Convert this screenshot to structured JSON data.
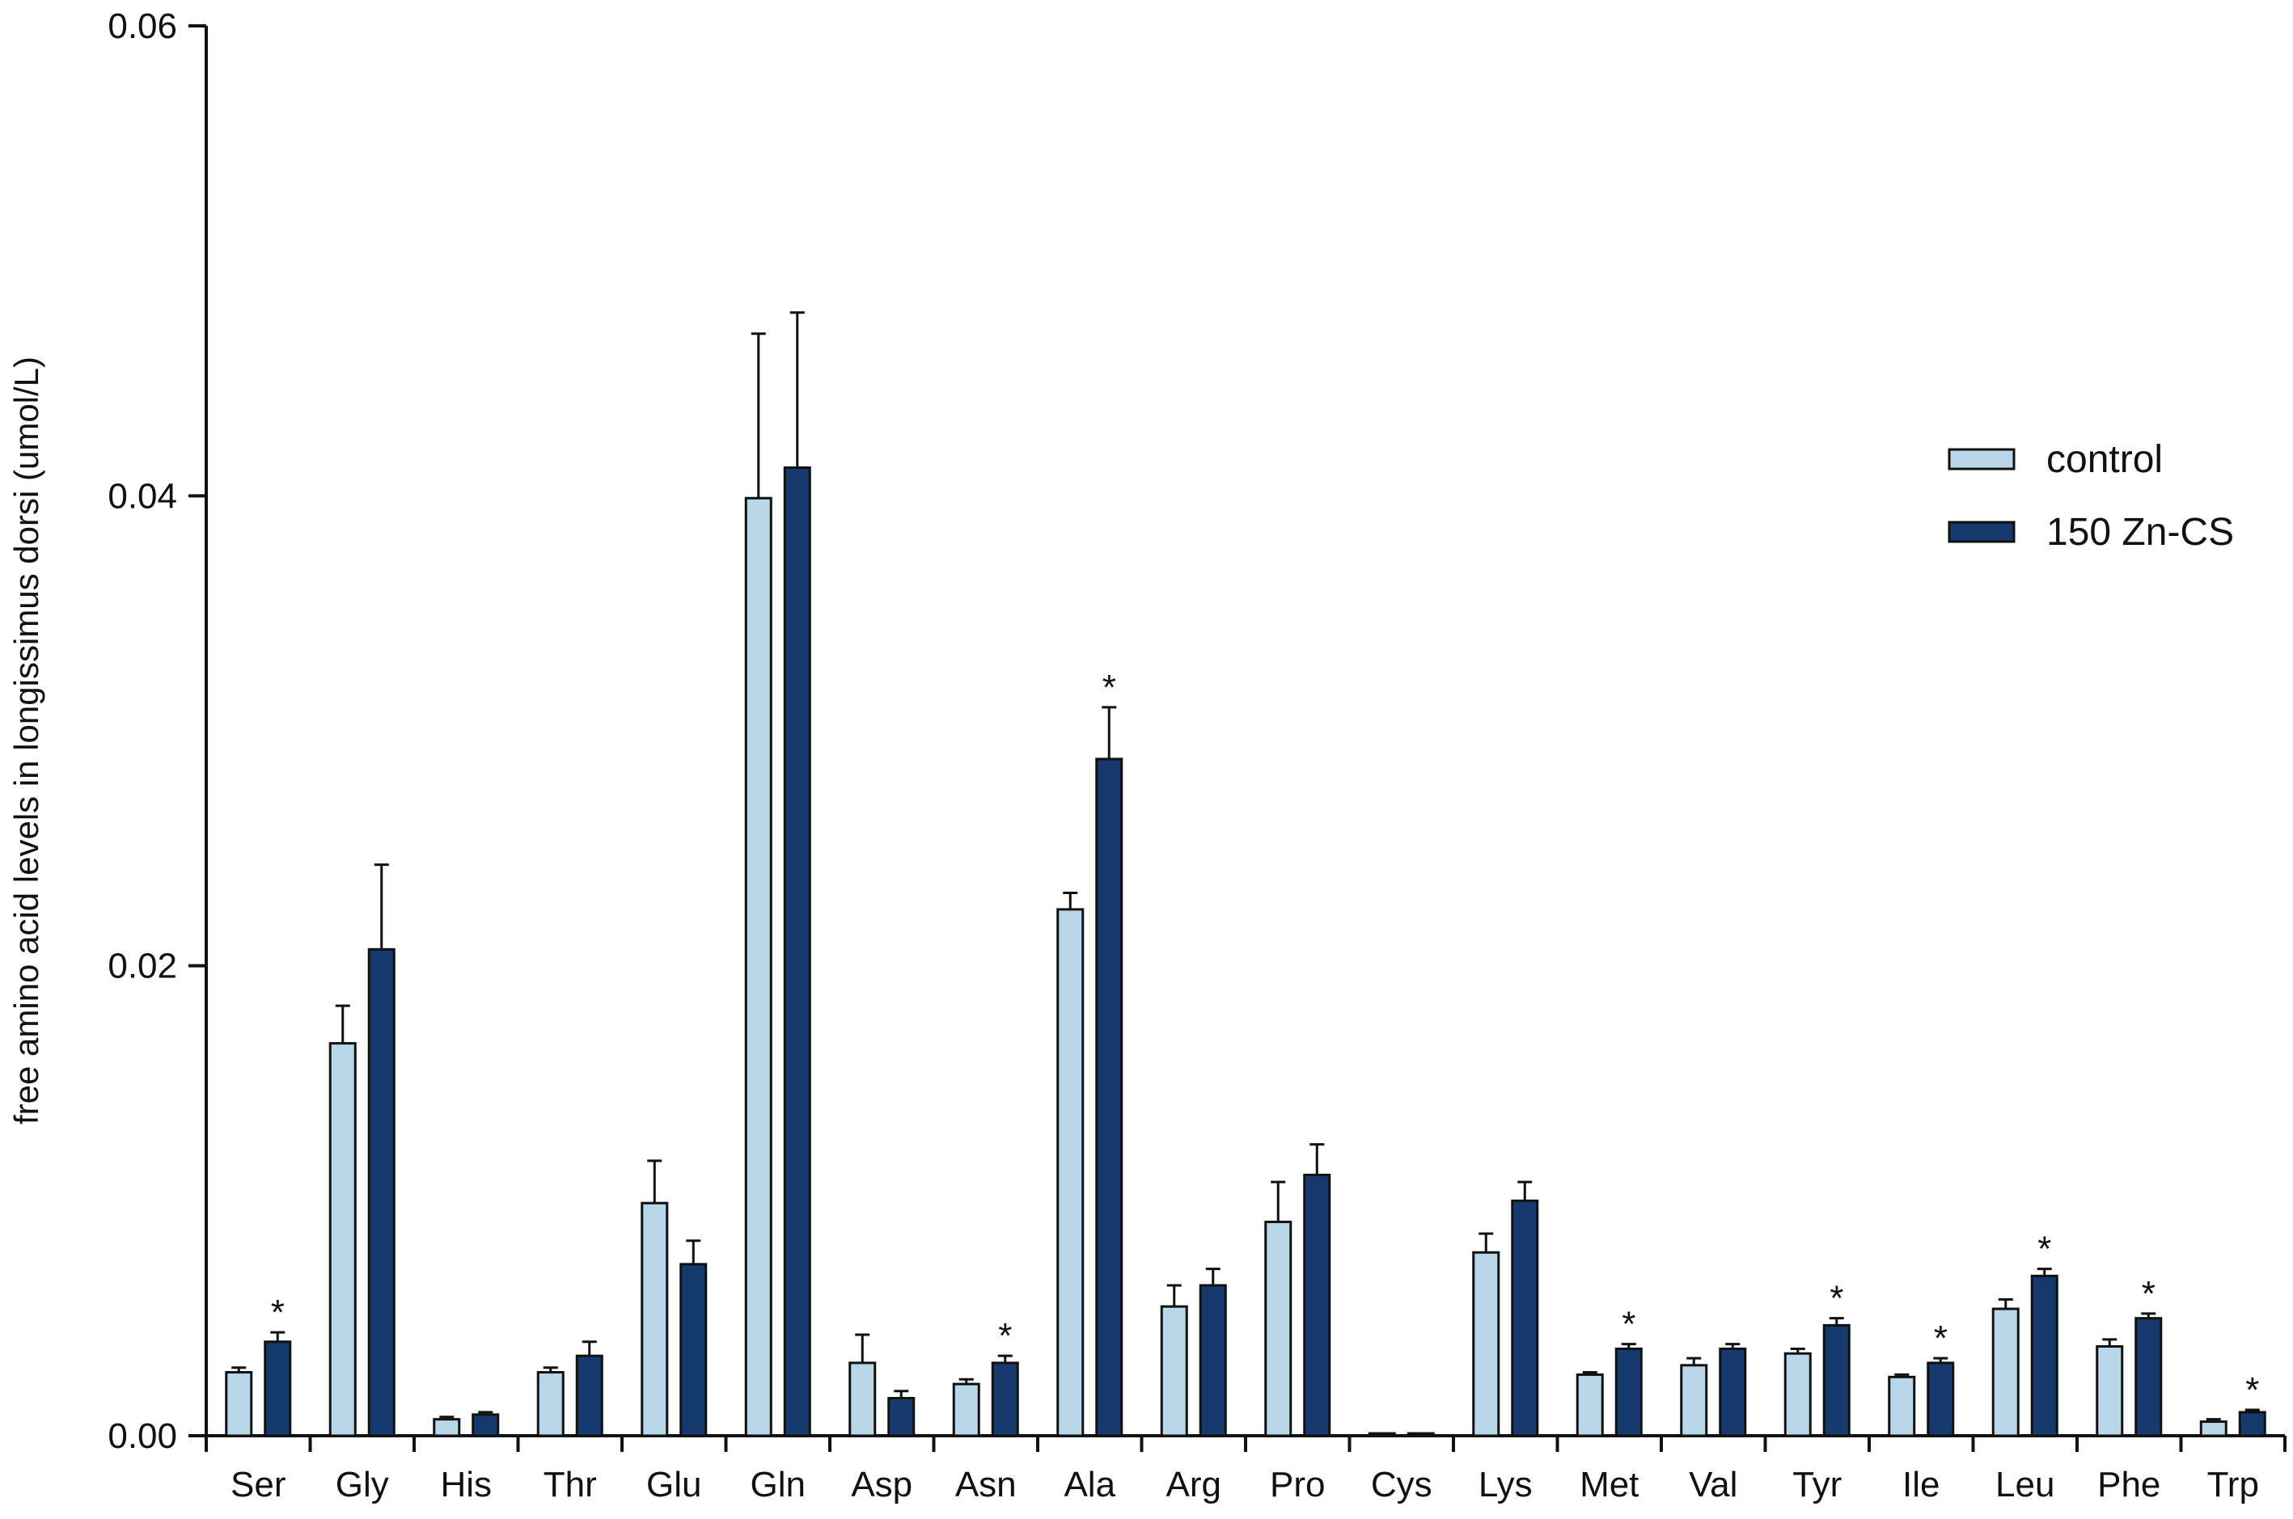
{
  "chart_data": {
    "type": "bar",
    "title": "",
    "xlabel": "",
    "ylabel": "free amino acid levels in longissimus dorsi (umol/L)",
    "ylim": [
      0,
      0.06
    ],
    "yticks": [
      "0.00",
      "0.02",
      "0.04",
      "0.06"
    ],
    "ytick_values": [
      0,
      0.02,
      0.04,
      0.06
    ],
    "grid": false,
    "legend_position": "right",
    "categories": [
      "Ser",
      "Gly",
      "His",
      "Thr",
      "Glu",
      "Gln",
      "Asp",
      "Asn",
      "Ala",
      "Arg",
      "Pro",
      "Cys",
      "Lys",
      "Met",
      "Val",
      "Tyr",
      "Ile",
      "Leu",
      "Phe",
      "Trp"
    ],
    "series": [
      {
        "name": "control",
        "color": "#b8d8ea",
        "values": [
          0.0027,
          0.0167,
          0.0007,
          0.0027,
          0.0099,
          0.0399,
          0.0031,
          0.0022,
          0.0224,
          0.0055,
          0.0091,
          0.0001,
          0.0078,
          0.0026,
          0.003,
          0.0035,
          0.0025,
          0.0054,
          0.0038,
          0.0006
        ],
        "errors": [
          0.0002,
          0.0016,
          0.0001,
          0.0002,
          0.0018,
          0.007,
          0.0012,
          0.0002,
          0.0007,
          0.0009,
          0.0017,
          0.0,
          0.0008,
          0.0001,
          0.0003,
          0.0002,
          0.0001,
          0.0004,
          0.0003,
          0.0001
        ]
      },
      {
        "name": "150 Zn-CS",
        "color": "#143a6e",
        "values": [
          0.004,
          0.0207,
          0.0009,
          0.0034,
          0.0073,
          0.0412,
          0.0016,
          0.0031,
          0.0288,
          0.0064,
          0.0111,
          0.0001,
          0.01,
          0.0037,
          0.0037,
          0.0047,
          0.0031,
          0.0068,
          0.005,
          0.001
        ],
        "errors": [
          0.0004,
          0.0036,
          0.0001,
          0.0006,
          0.001,
          0.0066,
          0.0003,
          0.0003,
          0.0022,
          0.0007,
          0.0013,
          0.0,
          0.0008,
          0.0002,
          0.0002,
          0.0003,
          0.0002,
          0.0003,
          0.0002,
          0.0001
        ]
      }
    ],
    "significance": [
      {
        "category": "Ser",
        "series": "150 Zn-CS",
        "mark": "*"
      },
      {
        "category": "Asn",
        "series": "150 Zn-CS",
        "mark": "*"
      },
      {
        "category": "Ala",
        "series": "150 Zn-CS",
        "mark": "*"
      },
      {
        "category": "Met",
        "series": "150 Zn-CS",
        "mark": "*"
      },
      {
        "category": "Tyr",
        "series": "150 Zn-CS",
        "mark": "*"
      },
      {
        "category": "Ile",
        "series": "150 Zn-CS",
        "mark": "*"
      },
      {
        "category": "Leu",
        "series": "150 Zn-CS",
        "mark": "*"
      },
      {
        "category": "Phe",
        "series": "150 Zn-CS",
        "mark": "*"
      },
      {
        "category": "Trp",
        "series": "150 Zn-CS",
        "mark": "*"
      }
    ]
  }
}
